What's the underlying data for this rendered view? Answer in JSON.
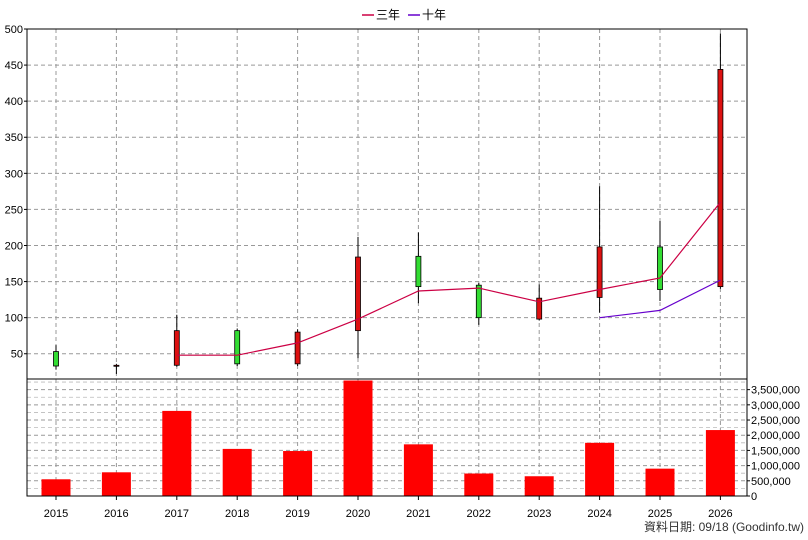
{
  "chart_data": [
    {
      "type": "candlestick-with-lines",
      "title": "",
      "x": [
        "2015",
        "2016",
        "2017",
        "2018",
        "2019",
        "2020",
        "2021",
        "2022",
        "2023",
        "2024",
        "2025",
        "2026"
      ],
      "ylim": [
        15,
        500
      ],
      "yticks": [
        50,
        100,
        150,
        200,
        250,
        300,
        350,
        400,
        450,
        500
      ],
      "grid": true,
      "legend": {
        "placement": "top-center",
        "entries": [
          {
            "name": "三年",
            "color": "#cc0044"
          },
          {
            "name": "十年",
            "color": "#6600cc"
          }
        ]
      },
      "candles": [
        {
          "x": "2015",
          "open": 33,
          "high": 62,
          "low": 28,
          "close": 53
        },
        {
          "x": "2016",
          "open": 34,
          "high": 36,
          "low": 22,
          "close": 33
        },
        {
          "x": "2017",
          "open": 82,
          "high": 104,
          "low": 32,
          "close": 34
        },
        {
          "x": "2018",
          "open": 36,
          "high": 85,
          "low": 33,
          "close": 82
        },
        {
          "x": "2019",
          "open": 80,
          "high": 84,
          "low": 33,
          "close": 36
        },
        {
          "x": "2020",
          "open": 184,
          "high": 212,
          "low": 44,
          "close": 82
        },
        {
          "x": "2021",
          "open": 143,
          "high": 218,
          "low": 120,
          "close": 185
        },
        {
          "x": "2022",
          "open": 100,
          "high": 148,
          "low": 90,
          "close": 145
        },
        {
          "x": "2023",
          "open": 127,
          "high": 146,
          "low": 96,
          "close": 98
        },
        {
          "x": "2024",
          "open": 198,
          "high": 282,
          "low": 107,
          "close": 128
        },
        {
          "x": "2025",
          "open": 139,
          "high": 234,
          "low": 123,
          "close": 198
        },
        {
          "x": "2026",
          "open": 444,
          "high": 494,
          "low": 140,
          "close": 143
        }
      ],
      "series": [
        {
          "name": "三年",
          "color": "#cc0044",
          "values": [
            null,
            null,
            48,
            48,
            65,
            98,
            137,
            141,
            122,
            139,
            155,
            260
          ]
        },
        {
          "name": "十年",
          "color": "#6600cc",
          "values": [
            null,
            null,
            null,
            null,
            null,
            null,
            null,
            null,
            null,
            100,
            110,
            152
          ]
        }
      ]
    },
    {
      "type": "bar",
      "categories": [
        "2015",
        "2016",
        "2017",
        "2018",
        "2019",
        "2020",
        "2021",
        "2022",
        "2023",
        "2024",
        "2025",
        "2026"
      ],
      "values": [
        550000,
        780000,
        2800000,
        1550000,
        1480000,
        3800000,
        1700000,
        740000,
        650000,
        1750000,
        900000,
        2170000
      ],
      "ylim": [
        0,
        3850000
      ],
      "yticks": [
        0,
        500000,
        1000000,
        1500000,
        2000000,
        2500000,
        3000000,
        3500000
      ],
      "ytick_labels": [
        "0",
        "500,000",
        "1,000,000",
        "1,500,000",
        "2,000,000",
        "2,500,000",
        "3,000,000",
        "3,500,000"
      ],
      "color": "#ff0000",
      "grid": true
    }
  ],
  "footer": {
    "date_label": "資料日期: 09/18",
    "source": "(Goodinfo.tw)"
  }
}
